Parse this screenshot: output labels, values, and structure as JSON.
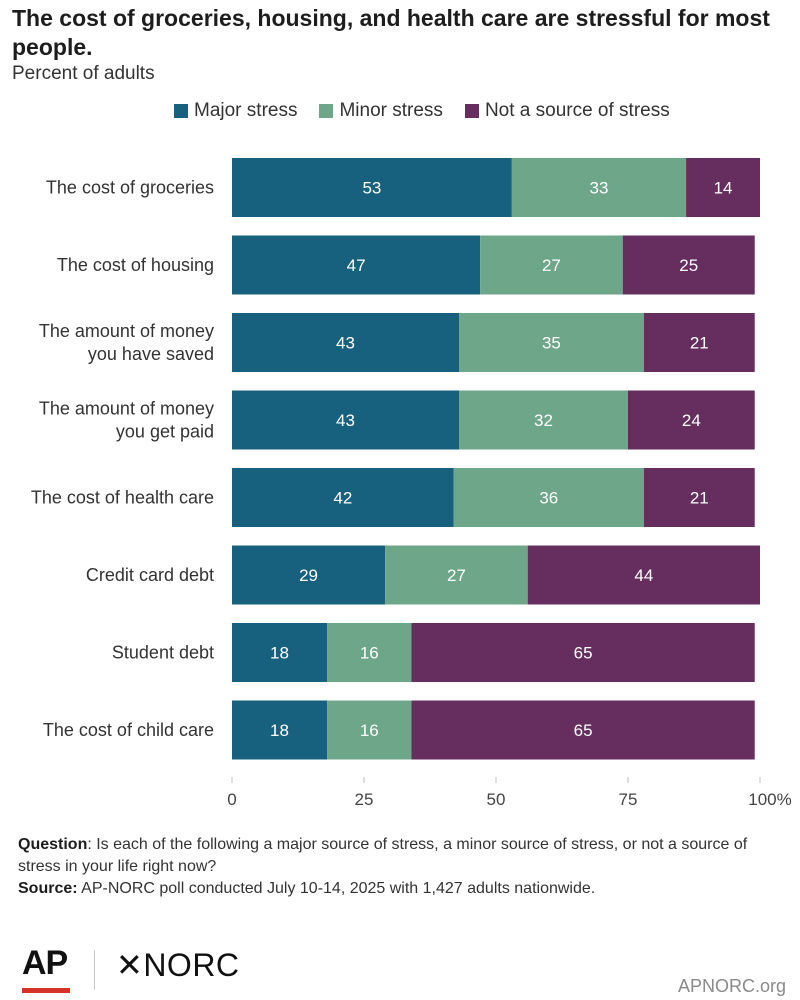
{
  "chart_data": {
    "type": "bar",
    "orientation": "horizontal",
    "stacked": true,
    "title": "The cost of groceries, housing, and health care are stressful for most people.",
    "subtitle": "Percent of adults",
    "categories": [
      "The cost of groceries",
      "The cost of housing",
      "The amount of money you have saved",
      "The amount of money you get paid",
      "The cost of health care",
      "Credit card debt",
      "Student debt",
      "The cost of child care"
    ],
    "category_lines": [
      [
        "The cost of groceries"
      ],
      [
        "The cost of housing"
      ],
      [
        "The amount of money",
        "you have saved"
      ],
      [
        "The amount of money",
        "you get paid"
      ],
      [
        "The cost of health care"
      ],
      [
        "Credit card debt"
      ],
      [
        "Student debt"
      ],
      [
        "The cost of child care"
      ]
    ],
    "series": [
      {
        "name": "Major stress",
        "color": "#17617e",
        "values": [
          53,
          47,
          43,
          43,
          42,
          29,
          18,
          18
        ]
      },
      {
        "name": "Minor stress",
        "color": "#6ea689",
        "values": [
          33,
          27,
          35,
          32,
          36,
          27,
          16,
          16
        ]
      },
      {
        "name": "Not a source of stress",
        "color": "#662d5f",
        "values": [
          14,
          25,
          21,
          24,
          21,
          44,
          65,
          65
        ]
      }
    ],
    "xlim": [
      0,
      100
    ],
    "xticks": [
      0,
      25,
      50,
      75,
      100
    ],
    "xtick_labels": [
      "0",
      "25",
      "50",
      "75",
      "100%"
    ],
    "legend_position": "top",
    "grid": false
  },
  "footer": {
    "question_label": "Question",
    "question_text": ": Is each of the following a major source of stress, a minor source of stress, or not a source of stress in your life right now?",
    "source_label": "Source:",
    "source_text": " AP-NORC poll conducted July 10-14, 2025 with 1,427 adults nationwide."
  },
  "branding": {
    "ap_logo": "AP",
    "norc_logo": "✕NORC",
    "website": "APNORC.org"
  }
}
